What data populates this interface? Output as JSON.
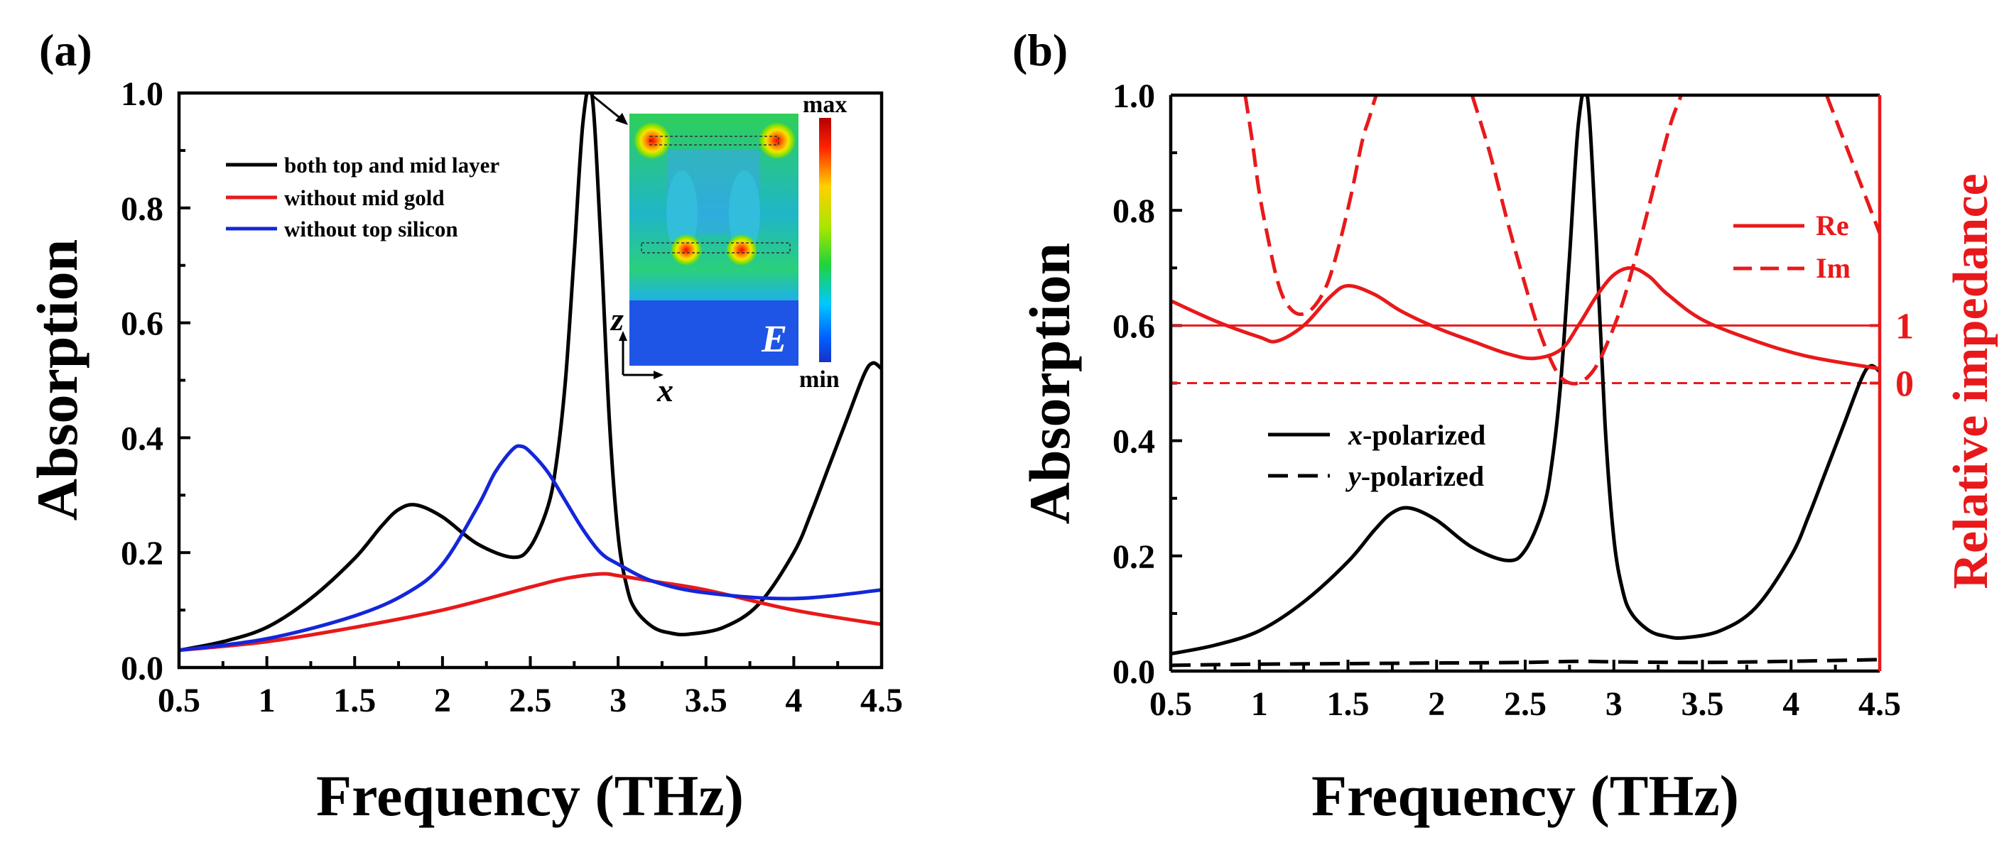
{
  "chart_data": [
    {
      "panel": "(a)",
      "type": "line",
      "xlabel": "Frequency (THz)",
      "ylabel": "Absorption",
      "xlim": [
        0.5,
        4.5
      ],
      "ylim": [
        0.0,
        1.0
      ],
      "xticks": [
        "0.5",
        "1",
        "1.5",
        "2",
        "2.5",
        "3",
        "3.5",
        "4",
        "4.5"
      ],
      "yticks": [
        "0.0",
        "0.2",
        "0.4",
        "0.6",
        "0.8",
        "1.0"
      ],
      "series": [
        {
          "name": "both top and mid layer",
          "color": "#000000",
          "x": [
            0.5,
            0.75,
            1.0,
            1.25,
            1.5,
            1.65,
            1.75,
            1.85,
            2.0,
            2.2,
            2.4,
            2.5,
            2.6,
            2.65,
            2.7,
            2.75,
            2.8,
            2.85,
            2.9,
            2.95,
            3.0,
            3.05,
            3.1,
            3.2,
            3.3,
            3.4,
            3.6,
            3.8,
            4.0,
            4.1,
            4.2,
            4.3,
            4.4,
            4.45,
            4.5
          ],
          "y": [
            0.03,
            0.045,
            0.07,
            0.12,
            0.19,
            0.245,
            0.275,
            0.283,
            0.262,
            0.215,
            0.192,
            0.21,
            0.28,
            0.36,
            0.5,
            0.72,
            0.95,
            1.0,
            0.75,
            0.43,
            0.23,
            0.14,
            0.1,
            0.07,
            0.06,
            0.058,
            0.07,
            0.11,
            0.2,
            0.27,
            0.35,
            0.43,
            0.51,
            0.53,
            0.52
          ]
        },
        {
          "name": "without mid gold",
          "color": "#e8191b",
          "x": [
            0.5,
            1.0,
            1.5,
            2.0,
            2.5,
            2.7,
            2.9,
            3.0,
            3.2,
            3.5,
            4.0,
            4.5
          ],
          "y": [
            0.03,
            0.045,
            0.07,
            0.1,
            0.14,
            0.155,
            0.163,
            0.16,
            0.15,
            0.135,
            0.1,
            0.075
          ]
        },
        {
          "name": "without top silicon",
          "color": "#1426d9",
          "x": [
            0.5,
            1.0,
            1.5,
            1.8,
            2.0,
            2.2,
            2.3,
            2.4,
            2.45,
            2.5,
            2.6,
            2.7,
            2.8,
            2.9,
            3.0,
            3.2,
            3.5,
            4.0,
            4.5
          ],
          "y": [
            0.03,
            0.05,
            0.09,
            0.13,
            0.18,
            0.28,
            0.34,
            0.38,
            0.385,
            0.375,
            0.34,
            0.29,
            0.24,
            0.2,
            0.18,
            0.15,
            0.13,
            0.12,
            0.135
          ]
        }
      ],
      "inset": {
        "max_label": "max",
        "min_label": "min",
        "field_label": "E",
        "axis_z": "z",
        "axis_x": "x"
      }
    },
    {
      "panel": "(b)",
      "type": "line",
      "xlabel": "Frequency (THz)",
      "ylabel": "Absorption",
      "ylabel_right": "Relative impedance",
      "xlim": [
        0.5,
        4.5
      ],
      "ylim": [
        0.0,
        1.0
      ],
      "xticks": [
        "0.5",
        "1",
        "1.5",
        "2",
        "2.5",
        "3",
        "3.5",
        "4",
        "4.5"
      ],
      "yticks": [
        "0.0",
        "0.2",
        "0.4",
        "0.6",
        "0.8",
        "1.0"
      ],
      "right_ticks": [
        {
          "label": "1",
          "at": 0.6
        },
        {
          "label": "0",
          "at": 0.5
        }
      ],
      "series": [
        {
          "name": "x-polarized",
          "color": "#000000",
          "dash": "solid",
          "x": [
            0.5,
            0.75,
            1.0,
            1.25,
            1.5,
            1.65,
            1.75,
            1.85,
            2.0,
            2.2,
            2.4,
            2.5,
            2.6,
            2.65,
            2.7,
            2.75,
            2.8,
            2.85,
            2.9,
            2.95,
            3.0,
            3.05,
            3.1,
            3.2,
            3.3,
            3.4,
            3.6,
            3.8,
            4.0,
            4.1,
            4.2,
            4.3,
            4.4,
            4.45,
            4.5
          ],
          "y": [
            0.03,
            0.045,
            0.07,
            0.12,
            0.19,
            0.245,
            0.275,
            0.283,
            0.262,
            0.215,
            0.192,
            0.21,
            0.28,
            0.36,
            0.5,
            0.72,
            0.95,
            1.0,
            0.75,
            0.43,
            0.23,
            0.14,
            0.1,
            0.07,
            0.06,
            0.058,
            0.07,
            0.11,
            0.2,
            0.27,
            0.35,
            0.43,
            0.51,
            0.53,
            0.52
          ]
        },
        {
          "name": "y-polarized",
          "color": "#000000",
          "dash": "dashed",
          "x": [
            0.5,
            1.0,
            1.5,
            2.0,
            2.5,
            2.8,
            3.0,
            3.5,
            4.0,
            4.5
          ],
          "y": [
            0.01,
            0.012,
            0.013,
            0.014,
            0.015,
            0.017,
            0.016,
            0.015,
            0.017,
            0.02
          ]
        },
        {
          "name": "Re",
          "color": "#e8191b",
          "dash": "solid",
          "x": [
            0.5,
            0.75,
            1.0,
            1.1,
            1.25,
            1.4,
            1.5,
            1.65,
            1.8,
            2.0,
            2.2,
            2.4,
            2.55,
            2.7,
            2.8,
            2.9,
            3.0,
            3.1,
            3.2,
            3.3,
            3.5,
            3.8,
            4.1,
            4.5
          ],
          "y": [
            0.643,
            0.608,
            0.58,
            0.573,
            0.6,
            0.65,
            0.669,
            0.654,
            0.625,
            0.596,
            0.573,
            0.551,
            0.543,
            0.558,
            0.6,
            0.65,
            0.688,
            0.7,
            0.685,
            0.655,
            0.61,
            0.573,
            0.546,
            0.525
          ]
        },
        {
          "name": "Im",
          "color": "#e8191b",
          "dash": "dashed",
          "segments": [
            {
              "x": [
                0.92,
                0.96,
                1.0,
                1.05,
                1.1,
                1.15,
                1.22,
                1.3,
                1.38,
                1.45,
                1.52,
                1.58,
                1.62,
                1.66,
                1.7
              ],
              "y": [
                1.0,
                0.92,
                0.83,
                0.75,
                0.68,
                0.64,
                0.62,
                0.63,
                0.67,
                0.74,
                0.83,
                0.92,
                0.96,
                1.0,
                1.02
              ]
            },
            {
              "x": [
                2.2,
                2.3,
                2.4,
                2.5,
                2.58,
                2.66,
                2.72,
                2.8,
                2.88,
                2.95,
                3.05,
                3.15,
                3.25,
                3.32,
                3.38
              ],
              "y": [
                1.0,
                0.9,
                0.78,
                0.67,
                0.59,
                0.53,
                0.505,
                0.5,
                0.52,
                0.56,
                0.64,
                0.75,
                0.87,
                0.95,
                1.0
              ]
            },
            {
              "x": [
                4.2,
                4.25,
                4.3,
                4.35,
                4.4,
                4.45,
                4.5
              ],
              "y": [
                1.0,
                0.96,
                0.92,
                0.88,
                0.84,
                0.8,
                0.76
              ]
            }
          ]
        }
      ],
      "unity_line": 1,
      "zero_line": 0
    }
  ]
}
